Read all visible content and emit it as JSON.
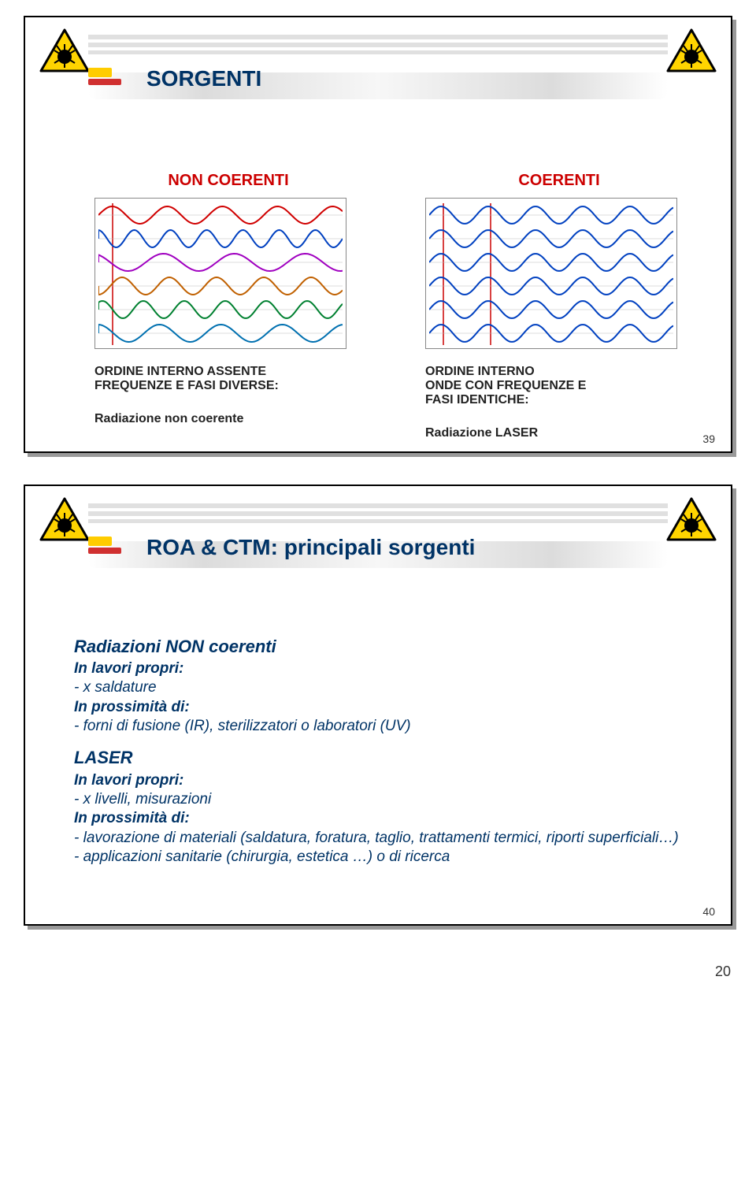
{
  "slide1": {
    "title": "SORGENTI",
    "left": {
      "heading": "NON COERENTI",
      "label1": "ORDINE INTERNO ASSENTE\nFREQUENZE E FASI DIVERSE:",
      "label2": "Radiazione non coerente",
      "waves": [
        {
          "color": "#d00000",
          "period": 70,
          "phase": 0
        },
        {
          "color": "#0040c0",
          "period": 46,
          "phase": 12
        },
        {
          "color": "#a000c0",
          "period": 90,
          "phase": 30
        },
        {
          "color": "#c06000",
          "period": 60,
          "phase": 45
        },
        {
          "color": "#008030",
          "period": 52,
          "phase": 8
        },
        {
          "color": "#0070b0",
          "period": 78,
          "phase": 20
        }
      ],
      "vlines": [
        18
      ]
    },
    "right": {
      "heading": "COERENTI",
      "label1": "ORDINE INTERNO\nONDE CON FREQUENZE E\nFASI IDENTICHE:",
      "label2": "Radiazione LASER",
      "waves": [
        {
          "color": "#0040c0",
          "period": 60,
          "phase": 0
        },
        {
          "color": "#0040c0",
          "period": 60,
          "phase": 0
        },
        {
          "color": "#0040c0",
          "period": 60,
          "phase": 0
        },
        {
          "color": "#0040c0",
          "period": 60,
          "phase": 0
        },
        {
          "color": "#0040c0",
          "period": 60,
          "phase": 0
        },
        {
          "color": "#0040c0",
          "period": 60,
          "phase": 0
        }
      ],
      "vlines": [
        18,
        78
      ]
    },
    "pagenum": "39"
  },
  "slide2": {
    "title": "ROA & CTM: principali sorgenti",
    "sect1": {
      "head": "Radiazioni NON coerenti",
      "sub1": "In lavori propri:",
      "b1": "-  x saldature",
      "sub2": "In prossimità di:",
      "b2": "-  forni di fusione (IR), sterilizzatori o laboratori (UV)"
    },
    "sect2": {
      "head": "LASER",
      "sub1": "In lavori propri:",
      "b1": "-  x livelli, misurazioni",
      "sub2": "In prossimità di:",
      "b2": "- lavorazione di materiali (saldatura, foratura, taglio, trattamenti termici, riporti superficiali…)",
      "b3": "-  applicazioni sanitarie (chirurgia, estetica …) o di ricerca"
    },
    "pagenum": "40"
  },
  "footer_pagenum": "20",
  "colors": {
    "title_color": "#003366",
    "red": "#cc0000",
    "accent_yellow": "#ffcc00",
    "accent_red": "#d03030"
  }
}
